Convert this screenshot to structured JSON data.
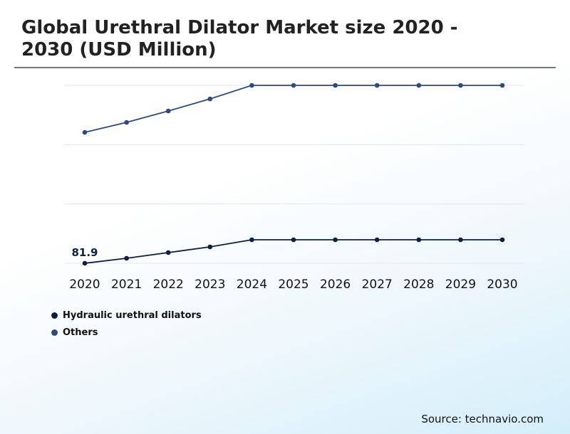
{
  "title": "Global Urethral Dilator Market size 2020 - 2030 (USD Million)",
  "source": "Source: technavio.com",
  "chart_data": {
    "type": "line",
    "title": "Global Urethral Dilator Market size 2020 - 2030 (USD Million)",
    "xlabel": "",
    "ylabel": "",
    "categories": [
      "2020",
      "2021",
      "2022",
      "2023",
      "2024",
      "2025",
      "2026",
      "2027",
      "2028",
      "2029",
      "2030"
    ],
    "ylim": [
      81.9,
      331.9
    ],
    "grid": true,
    "legend_position": "bottom-left",
    "series": [
      {
        "name": "Hydraulic urethral dilators",
        "color": "#0c1f47",
        "values": [
          81.9,
          88.9,
          96.9,
          104.9,
          114.9,
          114.9,
          114.9,
          114.9,
          114.9,
          114.9,
          114.9
        ]
      },
      {
        "name": "Others",
        "color": "#2d4a82",
        "values": [
          265.9,
          279.9,
          295.9,
          312.9,
          331.9,
          331.9,
          331.9,
          331.9,
          331.9,
          331.9,
          331.9
        ]
      }
    ],
    "data_labels": [
      {
        "series": 0,
        "index": 0,
        "text": "81.9"
      }
    ]
  }
}
